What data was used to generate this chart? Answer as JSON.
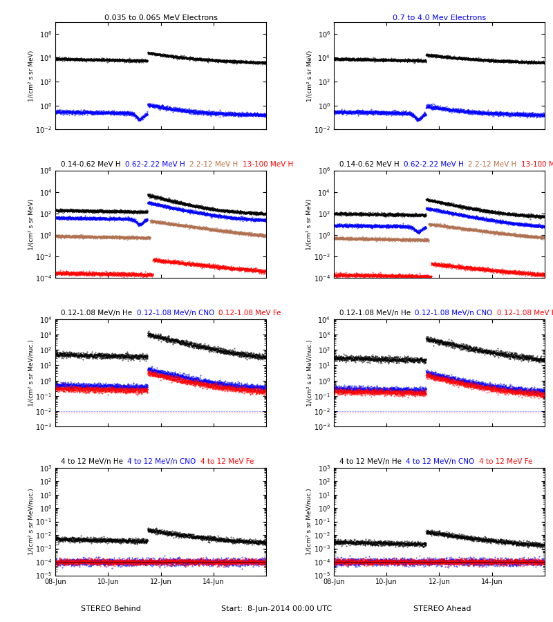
{
  "titles_row1_left": "0.035 to 0.065 MeV Electrons",
  "titles_row1_right": "0.7 to 4.0 Mev Electrons",
  "titles_row2": [
    "0.14-0.62 MeV H",
    "0.62-2.22 MeV H",
    "2.2-12 MeV H",
    "13-100 MeV H"
  ],
  "titles_row2_colors": [
    "black",
    "blue",
    "#b87040",
    "red"
  ],
  "titles_row3": [
    "0.12-1.08 MeV/n He",
    "0.12-1.08 MeV/n CNO",
    "0.12-1.08 MeV Fe"
  ],
  "titles_row3_colors": [
    "black",
    "blue",
    "red"
  ],
  "titles_row4": [
    "4 to 12 MeV/n He",
    "4 to 12 MeV/n CNO",
    "4 to 12 MeV Fe"
  ],
  "titles_row4_colors": [
    "black",
    "blue",
    "red"
  ],
  "xlabel_left": "STEREO Behind",
  "xlabel_center": "Start:  8-Jun-2014 00:00 UTC",
  "xlabel_right": "STEREO Ahead",
  "ylabel_r12": "1/(cm² s sr MeV)",
  "ylabel_r34": "1/(cm² s sr MeV/nuc.)",
  "xtick_labels": [
    "08-Jun",
    "10-Jun",
    "12-Jun",
    "14-Jun"
  ],
  "xtick_positions": [
    0,
    2,
    4,
    6
  ],
  "xlim": [
    0,
    8
  ],
  "row1_ylim": [
    -2,
    7
  ],
  "row2_ylim": [
    -4,
    6
  ],
  "row3_ylim": [
    -3,
    4
  ],
  "row4_ylim": [
    -5,
    3
  ],
  "npts": 2000,
  "seed": 17
}
